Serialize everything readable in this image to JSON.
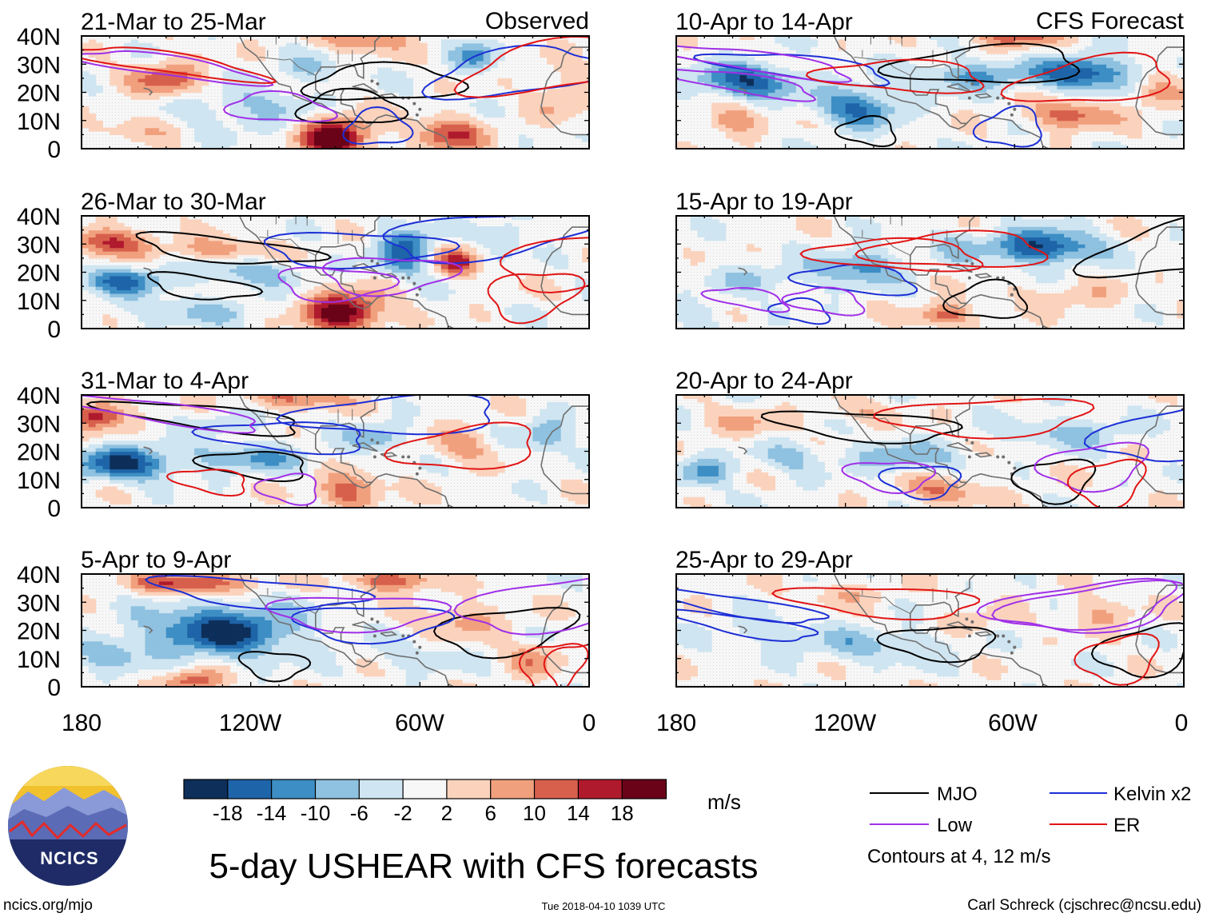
{
  "figure": {
    "main_title": "5-day USHEAR with CFS forecasts",
    "site_url": "ncics.org/mjo",
    "timestamp": "Tue 2018-04-10 1039 UTC",
    "author": "Carl Schreck (cjschrec@ncsu.edu)",
    "logo_text": "NCICS",
    "contour_note": "Contours at 4, 12 m/s"
  },
  "chart_data": {
    "type": "heatmap",
    "variable": "USHEAR",
    "units": "m/s",
    "x_ticks": [
      "180",
      "120W",
      "60W",
      "0"
    ],
    "x_range_deg_east": [
      -180,
      0
    ],
    "y_ticks": [
      "40N",
      "30N",
      "20N",
      "10N",
      "0"
    ],
    "y_range_deg_north": [
      0,
      40
    ],
    "colorbar": {
      "levels": [
        "-18",
        "-14",
        "-10",
        "-6",
        "-2",
        "2",
        "6",
        "10",
        "14",
        "18"
      ],
      "colors": [
        "#0d2f5a",
        "#1e64a8",
        "#3d8ec4",
        "#8fc1e0",
        "#cfe5f1",
        "#f7f7f7",
        "#fbd3bd",
        "#f1a07e",
        "#d7604d",
        "#b01a2d",
        "#6a0318"
      ],
      "units": "m/s"
    },
    "legend": [
      {
        "name": "MJO",
        "color": "#000000"
      },
      {
        "name": "Kelvin x2",
        "color": "#1c2fd6"
      },
      {
        "name": "Low",
        "color": "#a030e8"
      },
      {
        "name": "ER",
        "color": "#e11414"
      }
    ],
    "columns": [
      {
        "header": "Observed",
        "panels": [
          {
            "period": "21-Mar to 25-Mar",
            "seed": 3,
            "features": [
              {
                "lon": -150,
                "lat": 25,
                "v": 13,
                "wx": 12,
                "wy": 6
              },
              {
                "lon": -90,
                "lat": 4,
                "v": 22,
                "wx": 12,
                "wy": 8
              },
              {
                "lon": -80,
                "lat": 40,
                "v": 11,
                "wx": 16,
                "wy": 5
              },
              {
                "lon": -50,
                "lat": 5,
                "v": 14,
                "wx": 12,
                "wy": 6
              },
              {
                "lon": -120,
                "lat": 14,
                "v": -7,
                "wx": 25,
                "wy": 7
              },
              {
                "lon": -40,
                "lat": 33,
                "v": -10,
                "wx": 8,
                "wy": 6
              },
              {
                "lon": -100,
                "lat": 28,
                "v": -6,
                "wx": 12,
                "wy": 5
              },
              {
                "lon": -160,
                "lat": 8,
                "v": 5,
                "wx": 15,
                "wy": 5
              },
              {
                "lon": -10,
                "lat": 20,
                "v": 6,
                "wx": 10,
                "wy": 10
              }
            ]
          },
          {
            "period": "26-Mar to 30-Mar",
            "seed": 7,
            "features": [
              {
                "lon": -170,
                "lat": 31,
                "v": 15,
                "wx": 14,
                "wy": 5
              },
              {
                "lon": -130,
                "lat": 28,
                "v": 9,
                "wx": 18,
                "wy": 4
              },
              {
                "lon": -87,
                "lat": 6,
                "v": 22,
                "wx": 14,
                "wy": 7
              },
              {
                "lon": -47,
                "lat": 24,
                "v": 15,
                "wx": 8,
                "wy": 5
              },
              {
                "lon": -165,
                "lat": 17,
                "v": -14,
                "wx": 15,
                "wy": 5
              },
              {
                "lon": -65,
                "lat": 28,
                "v": -16,
                "wx": 10,
                "wy": 8
              },
              {
                "lon": -120,
                "lat": 20,
                "v": -8,
                "wx": 20,
                "wy": 5
              },
              {
                "lon": -140,
                "lat": 6,
                "v": -6,
                "wx": 25,
                "wy": 5
              },
              {
                "lon": -30,
                "lat": 33,
                "v": -7,
                "wx": 8,
                "wy": 6
              }
            ]
          },
          {
            "period": "31-Mar to 4-Apr",
            "seed": 11,
            "features": [
              {
                "lon": -175,
                "lat": 33,
                "v": 18,
                "wx": 10,
                "wy": 5
              },
              {
                "lon": -105,
                "lat": 39,
                "v": 11,
                "wx": 18,
                "wy": 4
              },
              {
                "lon": -85,
                "lat": 6,
                "v": 13,
                "wx": 12,
                "wy": 6
              },
              {
                "lon": -45,
                "lat": 22,
                "v": 8,
                "wx": 10,
                "wy": 6
              },
              {
                "lon": -165,
                "lat": 16,
                "v": -18,
                "wx": 18,
                "wy": 6
              },
              {
                "lon": -120,
                "lat": 18,
                "v": -10,
                "wx": 20,
                "wy": 5
              },
              {
                "lon": -75,
                "lat": 25,
                "v": -9,
                "wx": 10,
                "wy": 5
              },
              {
                "lon": -15,
                "lat": 26,
                "v": -10,
                "wx": 8,
                "wy": 6
              },
              {
                "lon": -130,
                "lat": 30,
                "v": -5,
                "wx": 15,
                "wy": 4
              }
            ]
          },
          {
            "period": "5-Apr to 9-Apr",
            "seed": 19,
            "features": [
              {
                "lon": -140,
                "lat": 37,
                "v": 16,
                "wx": 20,
                "wy": 4
              },
              {
                "lon": -70,
                "lat": 38,
                "v": 14,
                "wx": 15,
                "wy": 4
              },
              {
                "lon": -140,
                "lat": 2,
                "v": 14,
                "wx": 10,
                "wy": 4
              },
              {
                "lon": -45,
                "lat": 24,
                "v": 8,
                "wx": 14,
                "wy": 6
              },
              {
                "lon": -130,
                "lat": 20,
                "v": -20,
                "wx": 25,
                "wy": 9
              },
              {
                "lon": -170,
                "lat": 12,
                "v": -8,
                "wx": 12,
                "wy": 6
              },
              {
                "lon": -60,
                "lat": 10,
                "v": -5,
                "wx": 15,
                "wy": 5
              },
              {
                "lon": -20,
                "lat": 10,
                "v": 8,
                "wx": 10,
                "wy": 6
              }
            ]
          }
        ]
      },
      {
        "header": "CFS Forecast",
        "panels": [
          {
            "period": "10-Apr to 14-Apr",
            "seed": 23,
            "features": [
              {
                "lon": -155,
                "lat": 24,
                "v": -17,
                "wx": 18,
                "wy": 6
              },
              {
                "lon": -115,
                "lat": 15,
                "v": -15,
                "wx": 14,
                "wy": 7
              },
              {
                "lon": -35,
                "lat": 27,
                "v": -18,
                "wx": 16,
                "wy": 6
              },
              {
                "lon": -75,
                "lat": 26,
                "v": -11,
                "wx": 20,
                "wy": 5
              },
              {
                "lon": -40,
                "lat": 12,
                "v": 13,
                "wx": 14,
                "wy": 5
              },
              {
                "lon": -160,
                "lat": 10,
                "v": 10,
                "wx": 10,
                "wy": 5
              },
              {
                "lon": -60,
                "lat": 40,
                "v": 12,
                "wx": 15,
                "wy": 4
              },
              {
                "lon": -10,
                "lat": 20,
                "v": 9,
                "wx": 8,
                "wy": 6
              }
            ]
          },
          {
            "period": "15-Apr to 19-Apr",
            "seed": 29,
            "features": [
              {
                "lon": -50,
                "lat": 29,
                "v": -19,
                "wx": 18,
                "wy": 6
              },
              {
                "lon": -115,
                "lat": 22,
                "v": -12,
                "wx": 14,
                "wy": 6
              },
              {
                "lon": -150,
                "lat": 18,
                "v": -6,
                "wx": 20,
                "wy": 5
              },
              {
                "lon": -85,
                "lat": 5,
                "v": 13,
                "wx": 10,
                "wy": 4
              },
              {
                "lon": -40,
                "lat": 12,
                "v": 5,
                "wx": 20,
                "wy": 5
              },
              {
                "lon": -80,
                "lat": 30,
                "v": -6,
                "wx": 10,
                "wy": 5
              },
              {
                "lon": -170,
                "lat": 5,
                "v": -5,
                "wx": 10,
                "wy": 5
              }
            ]
          },
          {
            "period": "20-Apr to 24-Apr",
            "seed": 31,
            "features": [
              {
                "lon": -170,
                "lat": 13,
                "v": -11,
                "wx": 10,
                "wy": 5
              },
              {
                "lon": -100,
                "lat": 18,
                "v": -9,
                "wx": 20,
                "wy": 5
              },
              {
                "lon": -40,
                "lat": 27,
                "v": -8,
                "wx": 20,
                "wy": 5
              },
              {
                "lon": -140,
                "lat": 18,
                "v": -7,
                "wx": 12,
                "wy": 5
              },
              {
                "lon": -85,
                "lat": 6,
                "v": 10,
                "wx": 14,
                "wy": 5
              },
              {
                "lon": -155,
                "lat": 30,
                "v": 6,
                "wx": 14,
                "wy": 5
              },
              {
                "lon": -115,
                "lat": 34,
                "v": 5,
                "wx": 14,
                "wy": 4
              }
            ]
          },
          {
            "period": "25-Apr to 29-Apr",
            "seed": 37,
            "features": [
              {
                "lon": -110,
                "lat": 15,
                "v": -7,
                "wx": 30,
                "wy": 6
              },
              {
                "lon": -150,
                "lat": 20,
                "v": -5,
                "wx": 16,
                "wy": 5
              },
              {
                "lon": -30,
                "lat": 26,
                "v": 7,
                "wx": 12,
                "wy": 5
              },
              {
                "lon": -120,
                "lat": 33,
                "v": 5,
                "wx": 15,
                "wy": 4
              },
              {
                "lon": -75,
                "lat": 22,
                "v": 5,
                "wx": 12,
                "wy": 5
              }
            ]
          }
        ]
      }
    ]
  }
}
